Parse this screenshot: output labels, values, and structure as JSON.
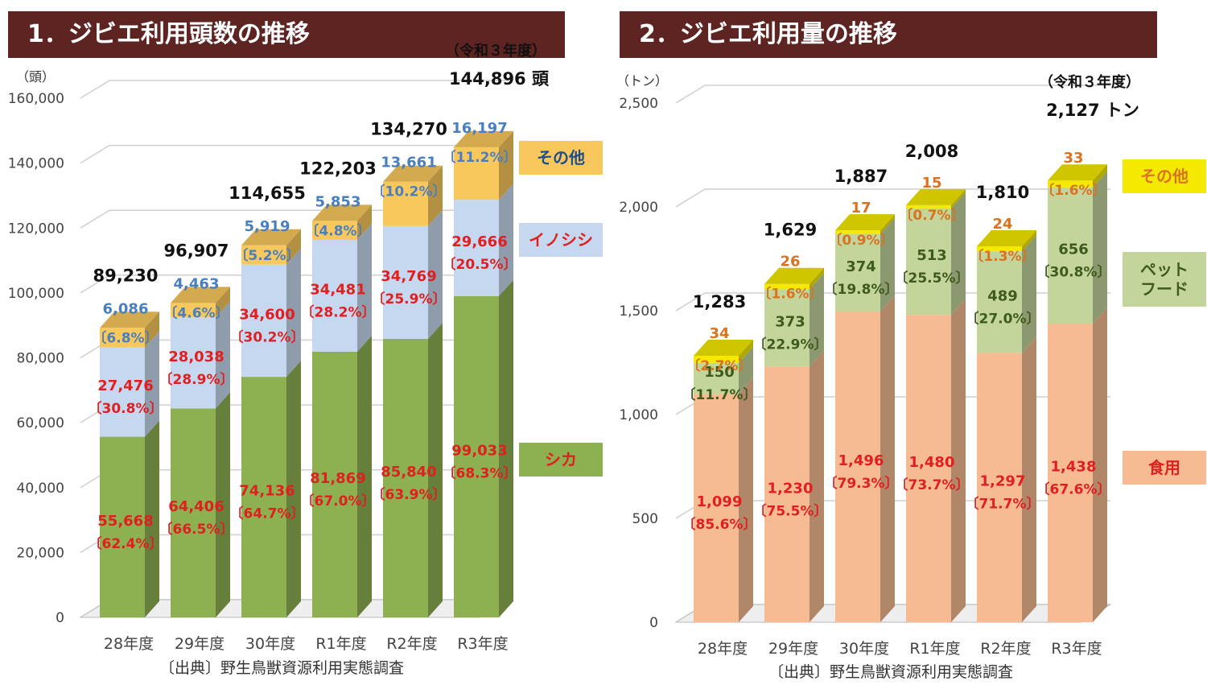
{
  "colors": {
    "title_bg": "#5e2422",
    "shika": "#8db050",
    "inoshishi": "#c6d8ef",
    "sonota1": "#f8c85c",
    "shokuyo": "#f6bb92",
    "petfood": "#c3d59b",
    "sonota2": "#f5e900",
    "label_red": "#e02020",
    "label_blue": "#4a7fbf",
    "label_orange": "#d9731f",
    "label_green": "#3f5a1c"
  },
  "chart_data": [
    {
      "type": "bar",
      "stacked": true,
      "title": "1．ジビエ利用頭数の推移",
      "unit_label": "（頭）",
      "source": "〔出典〕野生鳥獣資源利用実態調査",
      "categories": [
        "28年度",
        "29年度",
        "30年度",
        "R1年度",
        "R2年度",
        "R3年度"
      ],
      "yticks": [
        "0",
        "20,000",
        "40,000",
        "60,000",
        "80,000",
        "100,000",
        "120,000",
        "140,000",
        "160,000"
      ],
      "ylim": [
        0,
        160000
      ],
      "series": [
        {
          "name": "シカ",
          "values": [
            55668,
            64406,
            74136,
            81869,
            85840,
            99033
          ],
          "value_labels": [
            "55,668",
            "64,406",
            "74,136",
            "81,869",
            "85,840",
            "99,033"
          ],
          "pct_labels": [
            "〔62.4%〕",
            "〔66.5%〕",
            "〔64.7%〕",
            "〔67.0%〕",
            "〔63.9%〕",
            "〔68.3%〕"
          ]
        },
        {
          "name": "イノシシ",
          "values": [
            27476,
            28038,
            34600,
            34481,
            34769,
            29666
          ],
          "value_labels": [
            "27,476",
            "28,038",
            "34,600",
            "34,481",
            "34,769",
            "29,666"
          ],
          "pct_labels": [
            "〔30.8%〕",
            "〔28.9%〕",
            "〔30.2%〕",
            "〔28.2%〕",
            "〔25.9%〕",
            "〔20.5%〕"
          ]
        },
        {
          "name": "その他",
          "values": [
            6086,
            4463,
            5919,
            5853,
            13661,
            16197
          ],
          "value_labels": [
            "6,086",
            "4,463",
            "5,919",
            "5,853",
            "13,661",
            "16,197"
          ],
          "pct_labels": [
            "〔6.8%〕",
            "〔4.6%〕",
            "〔5.2%〕",
            "〔4.8%〕",
            "〔10.2%〕",
            "〔11.2%〕"
          ]
        }
      ],
      "totals": [
        "89,230",
        "96,907",
        "114,655",
        "122,203",
        "134,270",
        "144,896 頭"
      ],
      "annotation": "（令和３年度）"
    },
    {
      "type": "bar",
      "stacked": true,
      "title": "2．ジビエ利用量の推移",
      "unit_label": "（トン）",
      "source": "〔出典〕野生鳥獣資源利用実態調査",
      "categories": [
        "28年度",
        "29年度",
        "30年度",
        "R1年度",
        "R2年度",
        "R3年度"
      ],
      "yticks": [
        "0",
        "500",
        "1,000",
        "1,500",
        "2,000",
        "2,500"
      ],
      "ylim": [
        0,
        2500
      ],
      "series": [
        {
          "name": "食用",
          "values": [
            1099,
            1230,
            1496,
            1480,
            1297,
            1438
          ],
          "value_labels": [
            "1,099",
            "1,230",
            "1,496",
            "1,480",
            "1,297",
            "1,438"
          ],
          "pct_labels": [
            "〔85.6%〕",
            "〔75.5%〕",
            "〔79.3%〕",
            "〔73.7%〕",
            "〔71.7%〕",
            "〔67.6%〕"
          ]
        },
        {
          "name": "ペット\nフード",
          "values": [
            150,
            373,
            374,
            513,
            489,
            656
          ],
          "value_labels": [
            "150",
            "373",
            "374",
            "513",
            "489",
            "656"
          ],
          "pct_labels": [
            "〔11.7%〕",
            "〔22.9%〕",
            "〔19.8%〕",
            "〔25.5%〕",
            "〔27.0%〕",
            "〔30.8%〕"
          ]
        },
        {
          "name": "その他",
          "values": [
            34,
            26,
            17,
            15,
            24,
            33
          ],
          "value_labels": [
            "34",
            "26",
            "17",
            "15",
            "24",
            "33"
          ],
          "pct_labels": [
            "〔2.7%〕",
            "〔1.6%〕",
            "〔0.9%〕",
            "〔0.7%〕",
            "〔1.3%〕",
            "〔1.6%〕"
          ]
        }
      ],
      "totals": [
        "1,283",
        "1,629",
        "1,887",
        "2,008",
        "1,810",
        "2,127 トン"
      ],
      "annotation": "（令和３年度）"
    }
  ]
}
